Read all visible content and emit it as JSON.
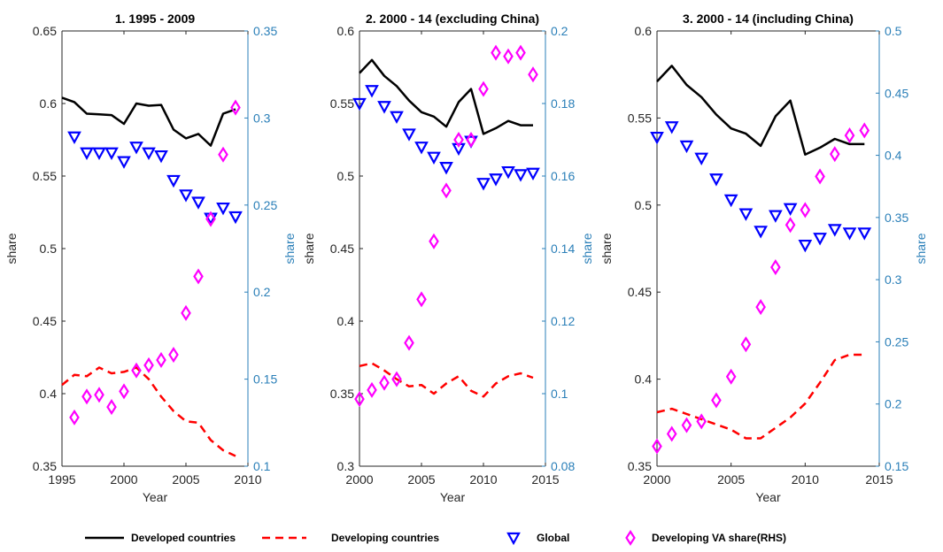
{
  "colors": {
    "developed": "#000000",
    "developing": "#ff0000",
    "global": "#0000ff",
    "va_share": "#ff00ff",
    "right_axis": "#2a7fb8"
  },
  "legend": {
    "items": [
      {
        "label": "Developed countries",
        "style": "solid-line",
        "color": "#000000"
      },
      {
        "label": "Developing countries",
        "style": "dashed-line",
        "color": "#ff0000"
      },
      {
        "label": "Global",
        "style": "triangle-down",
        "color": "#0000ff"
      },
      {
        "label": "Developing VA share(RHS)",
        "style": "diamond",
        "color": "#ff00ff"
      }
    ]
  },
  "chart_data": [
    {
      "type": "line",
      "title": "1. 1995 - 2009",
      "xlabel": "Year",
      "ylabel": "share",
      "ylabel_right": "share",
      "xlim": [
        1995,
        2010
      ],
      "xticks": [
        1995,
        2000,
        2005,
        2010
      ],
      "ylim": [
        0.35,
        0.65
      ],
      "yticks": [
        "0.35",
        "0.4",
        "0.45",
        "0.5",
        "0.55",
        "0.6",
        "0.65"
      ],
      "ylim_right": [
        0.1,
        0.35
      ],
      "yticks_right": [
        "0.1",
        "0.15",
        "0.2",
        "0.25",
        "0.3",
        "0.35"
      ],
      "series": [
        {
          "name": "Developed countries",
          "axis": "left",
          "x": [
            1995,
            1996,
            1997,
            1998,
            1999,
            2000,
            2001,
            2002,
            2003,
            2004,
            2005,
            2006,
            2007,
            2008,
            2009
          ],
          "y": [
            0.604,
            0.601,
            0.593,
            0.5925,
            0.592,
            0.586,
            0.6,
            0.5985,
            0.599,
            0.582,
            0.576,
            0.579,
            0.571,
            0.593,
            0.596
          ]
        },
        {
          "name": "Developing countries",
          "axis": "left",
          "x": [
            1995,
            1996,
            1997,
            1998,
            1999,
            2000,
            2001,
            2002,
            2003,
            2004,
            2005,
            2006,
            2007,
            2008,
            2009
          ],
          "y": [
            0.406,
            0.413,
            0.412,
            0.418,
            0.414,
            0.415,
            0.418,
            0.41,
            0.398,
            0.388,
            0.381,
            0.38,
            0.368,
            0.361,
            0.357
          ]
        },
        {
          "name": "Global",
          "axis": "left",
          "x": [
            1996,
            1997,
            1998,
            1999,
            2000,
            2001,
            2002,
            2003,
            2004,
            2005,
            2006,
            2007,
            2008,
            2009
          ],
          "y": [
            0.577,
            0.566,
            0.566,
            0.566,
            0.56,
            0.57,
            0.566,
            0.564,
            0.547,
            0.537,
            0.532,
            0.521,
            0.528,
            0.522
          ]
        },
        {
          "name": "Developing VA share(RHS)",
          "axis": "right",
          "x": [
            1996,
            1997,
            1998,
            1999,
            2000,
            2001,
            2002,
            2003,
            2004,
            2005,
            2006,
            2007,
            2008,
            2009
          ],
          "y": [
            0.128,
            0.14,
            0.141,
            0.134,
            0.143,
            0.155,
            0.158,
            0.161,
            0.164,
            0.188,
            0.209,
            0.242,
            0.279,
            0.306
          ]
        }
      ]
    },
    {
      "type": "line",
      "title": "2. 2000 - 14 (excluding China)",
      "xlabel": "Year",
      "ylabel": "share",
      "ylabel_right": "share",
      "xlim": [
        2000,
        2015
      ],
      "xticks": [
        2000,
        2005,
        2010,
        2015
      ],
      "ylim": [
        0.3,
        0.6
      ],
      "yticks": [
        "0.3",
        "0.35",
        "0.4",
        "0.45",
        "0.5",
        "0.55",
        "0.6"
      ],
      "ylim_right": [
        0.08,
        0.2
      ],
      "yticks_right": [
        "0.08",
        "0.1",
        "0.12",
        "0.14",
        "0.16",
        "0.18",
        "0.2"
      ],
      "series": [
        {
          "name": "Developed countries",
          "axis": "left",
          "x": [
            2000,
            2001,
            2002,
            2003,
            2004,
            2005,
            2006,
            2007,
            2008,
            2009,
            2010,
            2011,
            2012,
            2013,
            2014
          ],
          "y": [
            0.571,
            0.58,
            0.569,
            0.562,
            0.552,
            0.544,
            0.541,
            0.534,
            0.551,
            0.56,
            0.529,
            0.533,
            0.538,
            0.535,
            0.535
          ]
        },
        {
          "name": "Developing countries",
          "axis": "left",
          "x": [
            2000,
            2001,
            2002,
            2003,
            2004,
            2005,
            2006,
            2007,
            2008,
            2009,
            2010,
            2011,
            2012,
            2013,
            2014
          ],
          "y": [
            0.369,
            0.371,
            0.366,
            0.36,
            0.355,
            0.356,
            0.35,
            0.357,
            0.362,
            0.352,
            0.348,
            0.357,
            0.362,
            0.364,
            0.361
          ]
        },
        {
          "name": "Global",
          "axis": "left",
          "x": [
            2000,
            2001,
            2002,
            2003,
            2004,
            2005,
            2006,
            2007,
            2008,
            2009,
            2010,
            2011,
            2012,
            2013,
            2014
          ],
          "y": [
            0.55,
            0.559,
            0.548,
            0.541,
            0.529,
            0.52,
            0.513,
            0.506,
            0.519,
            0.524,
            0.495,
            0.498,
            0.503,
            0.501,
            0.502
          ]
        },
        {
          "name": "Developing VA share(RHS)",
          "axis": "right",
          "x": [
            2000,
            2001,
            2002,
            2003,
            2004,
            2005,
            2006,
            2007,
            2008,
            2009,
            2010,
            2011,
            2012,
            2013,
            2014
          ],
          "y": [
            0.0985,
            0.101,
            0.103,
            0.104,
            0.114,
            0.126,
            0.142,
            0.156,
            0.17,
            0.17,
            0.184,
            0.194,
            0.193,
            0.194,
            0.188
          ]
        }
      ]
    },
    {
      "type": "line",
      "title": "3. 2000 - 14 (including China)",
      "xlabel": "Year",
      "ylabel": "share",
      "ylabel_right": "share",
      "xlim": [
        2000,
        2015
      ],
      "xticks": [
        2000,
        2005,
        2010,
        2015
      ],
      "ylim": [
        0.35,
        0.6
      ],
      "yticks": [
        "0.35",
        "0.4",
        "0.45",
        "0.5",
        "0.55",
        "0.6"
      ],
      "ylim_right": [
        0.15,
        0.5
      ],
      "yticks_right": [
        "0.15",
        "0.2",
        "0.25",
        "0.3",
        "0.35",
        "0.4",
        "0.45",
        "0.5"
      ],
      "series": [
        {
          "name": "Developed countries",
          "axis": "left",
          "x": [
            2000,
            2001,
            2002,
            2003,
            2004,
            2005,
            2006,
            2007,
            2008,
            2009,
            2010,
            2011,
            2012,
            2013,
            2014
          ],
          "y": [
            0.571,
            0.58,
            0.569,
            0.562,
            0.552,
            0.544,
            0.541,
            0.534,
            0.551,
            0.56,
            0.529,
            0.533,
            0.538,
            0.535,
            0.535
          ]
        },
        {
          "name": "Developing countries",
          "axis": "left",
          "x": [
            2000,
            2001,
            2002,
            2003,
            2004,
            2005,
            2006,
            2007,
            2008,
            2009,
            2010,
            2011,
            2012,
            2013,
            2014
          ],
          "y": [
            0.381,
            0.383,
            0.38,
            0.377,
            0.374,
            0.371,
            0.366,
            0.366,
            0.372,
            0.378,
            0.386,
            0.398,
            0.411,
            0.414,
            0.414
          ]
        },
        {
          "name": "Global",
          "axis": "left",
          "x": [
            2000,
            2001,
            2002,
            2003,
            2004,
            2005,
            2006,
            2007,
            2008,
            2009,
            2010,
            2011,
            2012,
            2013,
            2014
          ],
          "y": [
            0.539,
            0.545,
            0.534,
            0.527,
            0.515,
            0.503,
            0.495,
            0.485,
            0.494,
            0.498,
            0.477,
            0.481,
            0.486,
            0.484,
            0.484
          ]
        },
        {
          "name": "Developing VA share(RHS)",
          "axis": "right",
          "x": [
            2000,
            2001,
            2002,
            2003,
            2004,
            2005,
            2006,
            2007,
            2008,
            2009,
            2010,
            2011,
            2012,
            2013,
            2014
          ],
          "y": [
            0.166,
            0.176,
            0.183,
            0.186,
            0.203,
            0.222,
            0.248,
            0.278,
            0.31,
            0.344,
            0.356,
            0.383,
            0.401,
            0.416,
            0.42
          ]
        }
      ]
    }
  ]
}
